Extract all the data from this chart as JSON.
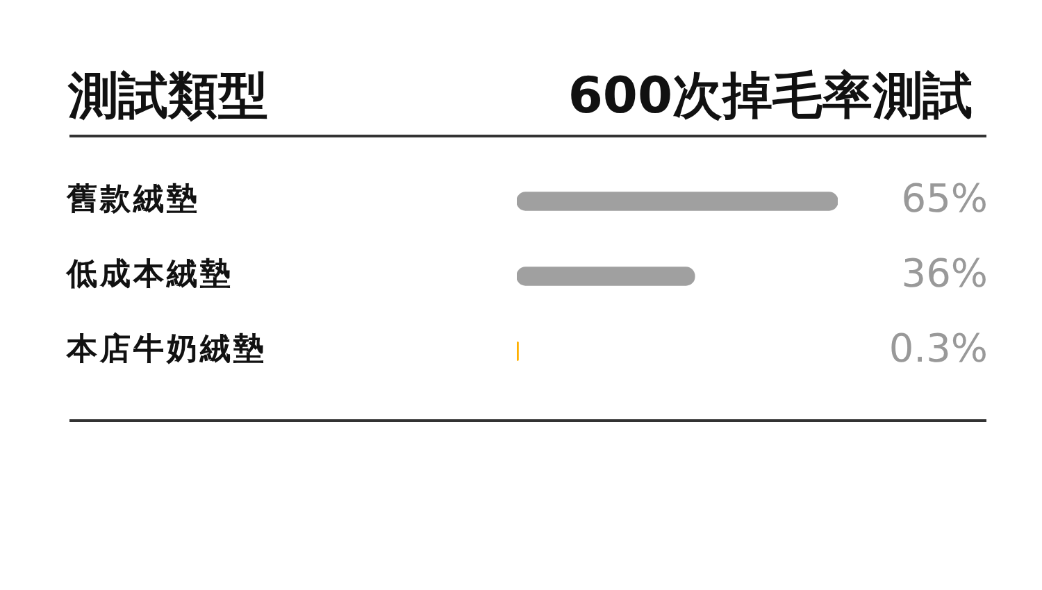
{
  "chart_data": {
    "type": "bar",
    "orientation": "horizontal",
    "ylabel": "測試類型",
    "xlabel": "600次掉毛率測試",
    "categories": [
      "舊款絨墊",
      "低成本絨墊",
      "本店牛奶絨墊"
    ],
    "values": [
      65,
      36,
      0.3
    ],
    "colors": [
      "#a0a0a0",
      "#a0a0a0",
      "#ffb000"
    ],
    "value_labels": [
      "65%",
      "36%",
      "0.3%"
    ],
    "tick_labels": "y",
    "grid": false,
    "legend": false
  }
}
